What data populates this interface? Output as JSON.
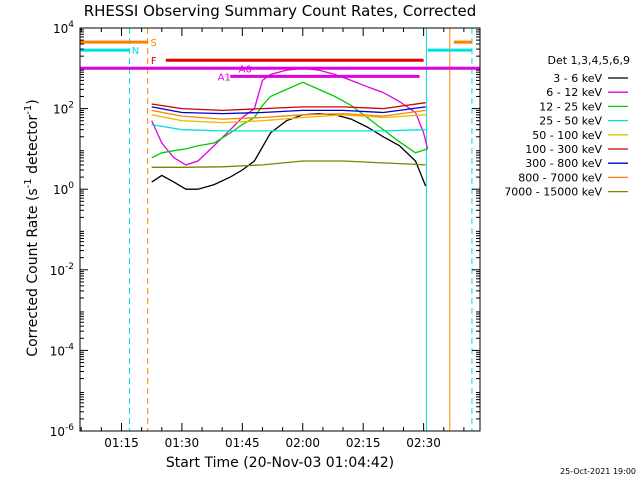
{
  "chart_data": {
    "type": "line",
    "title": "RHESSI Observing Summary Count Rates, Corrected",
    "xlabel": "Start Time (20-Nov-03 01:04:42)",
    "ylabel_parts": [
      "Corrected Count Rate (s",
      "-1",
      " detector",
      "-1",
      ")"
    ],
    "x_range_min": [
      4.7,
      104
    ],
    "yscale": "log",
    "ylim_exp": [
      -6,
      4
    ],
    "x_ticks": [
      {
        "min": 15,
        "label": "01:15"
      },
      {
        "min": 30,
        "label": "01:30"
      },
      {
        "min": 45,
        "label": "01:45"
      },
      {
        "min": 60,
        "label": "02:00"
      },
      {
        "min": 75,
        "label": "02:15"
      },
      {
        "min": 90,
        "label": "02:30"
      }
    ],
    "y_ticks": [
      {
        "exp": -6
      },
      {
        "exp": -4
      },
      {
        "exp": -2
      },
      {
        "exp": 0
      },
      {
        "exp": 2
      },
      {
        "exp": 4
      }
    ],
    "legend_title": "Det 1,3,4,5,6,9",
    "legend_position": "right",
    "series": [
      {
        "name": "3 - 6 keV",
        "color": "#000000",
        "x": [
          22.5,
          25,
          28,
          31,
          34,
          38,
          42,
          45,
          48,
          52,
          56,
          60,
          64,
          68,
          72,
          76,
          80,
          84,
          88,
          90.5
        ],
        "y": [
          1.5,
          2.2,
          1.5,
          1.0,
          1.0,
          1.3,
          2,
          3,
          5,
          25,
          50,
          70,
          75,
          70,
          55,
          35,
          20,
          12,
          5,
          1.2
        ]
      },
      {
        "name": "6 - 12 keV",
        "color": "#e000e0",
        "x": [
          22.5,
          25,
          28,
          31,
          34,
          38,
          42,
          45,
          48,
          50,
          52,
          56,
          60,
          64,
          68,
          72,
          76,
          80,
          84,
          88,
          90,
          91
        ],
        "y": [
          50,
          14,
          6,
          4,
          5,
          12,
          30,
          60,
          100,
          500,
          700,
          900,
          1000,
          900,
          700,
          500,
          350,
          250,
          150,
          80,
          25,
          10
        ]
      },
      {
        "name": "12 - 25 keV",
        "color": "#00cc00",
        "x": [
          22.5,
          25,
          28,
          31,
          34,
          38,
          42,
          45,
          48,
          50,
          52,
          56,
          60,
          64,
          68,
          72,
          76,
          80,
          84,
          88,
          91
        ],
        "y": [
          6,
          8,
          9,
          10,
          12,
          14,
          25,
          40,
          60,
          120,
          200,
          300,
          450,
          300,
          200,
          120,
          60,
          30,
          15,
          8,
          10
        ]
      },
      {
        "name": "25 - 50 keV",
        "color": "#00e0e0",
        "x": [
          22.5,
          30,
          40,
          50,
          60,
          70,
          80,
          90.5
        ],
        "y": [
          40,
          30,
          28,
          28,
          28,
          28,
          28,
          30
        ]
      },
      {
        "name": "50 - 100 keV",
        "color": "#e0c000",
        "x": [
          22.5,
          30,
          40,
          50,
          60,
          70,
          80,
          90.5
        ],
        "y": [
          70,
          50,
          45,
          50,
          60,
          70,
          60,
          70
        ]
      },
      {
        "name": "100 - 300 keV",
        "color": "#cc0000",
        "x": [
          22.5,
          30,
          40,
          50,
          60,
          70,
          80,
          90.5
        ],
        "y": [
          130,
          100,
          90,
          100,
          110,
          110,
          100,
          140
        ]
      },
      {
        "name": "300 - 800 keV",
        "color": "#0000cc",
        "x": [
          22.5,
          30,
          40,
          50,
          60,
          70,
          80,
          90.5
        ],
        "y": [
          110,
          80,
          75,
          80,
          90,
          90,
          80,
          110
        ]
      },
      {
        "name": "800 - 7000 keV",
        "color": "#ff8000",
        "x": [
          22.5,
          30,
          40,
          50,
          60,
          70,
          80,
          90.5
        ],
        "y": [
          90,
          65,
          55,
          60,
          70,
          75,
          65,
          90
        ]
      },
      {
        "name": "7000 - 15000 keV",
        "color": "#808000",
        "x": [
          22.5,
          30,
          40,
          50,
          60,
          70,
          80,
          90.5
        ],
        "y": [
          3.5,
          3.5,
          3.6,
          4,
          5,
          5,
          4.5,
          4
        ]
      }
    ],
    "flags": [
      {
        "label": "S",
        "color": "#ff8000",
        "y_exp": 3.65,
        "x": [
          [
            4.7,
            21.5
          ],
          [
            97.5,
            102
          ]
        ]
      },
      {
        "label": "N",
        "color": "#00e0e0",
        "y_exp": 3.45,
        "x": [
          [
            4.7,
            17
          ],
          [
            91,
            102
          ]
        ]
      },
      {
        "label": "F",
        "color": "#e00000",
        "y_exp": 3.2,
        "x": [
          [
            26,
            90
          ]
        ]
      },
      {
        "label": "A0",
        "color": "#e000e0",
        "y_exp": 3.0,
        "x": [
          [
            4.7,
            104
          ]
        ]
      },
      {
        "label": "A1",
        "color": "#e000e0",
        "y_exp": 2.8,
        "x": [
          [
            42,
            89
          ]
        ]
      }
    ],
    "vlines": [
      {
        "min": 17,
        "color": "#00e0e0",
        "dash": true
      },
      {
        "min": 21.5,
        "color": "#ff8000",
        "dash": true
      },
      {
        "min": 90.7,
        "color": "#00e0e0",
        "dash": false
      },
      {
        "min": 96.5,
        "color": "#ff8000",
        "dash": false
      },
      {
        "min": 102,
        "color": "#00e0e0",
        "dash": true
      }
    ],
    "grid": false
  },
  "footer_date": "25-Oct-2021 19:00"
}
